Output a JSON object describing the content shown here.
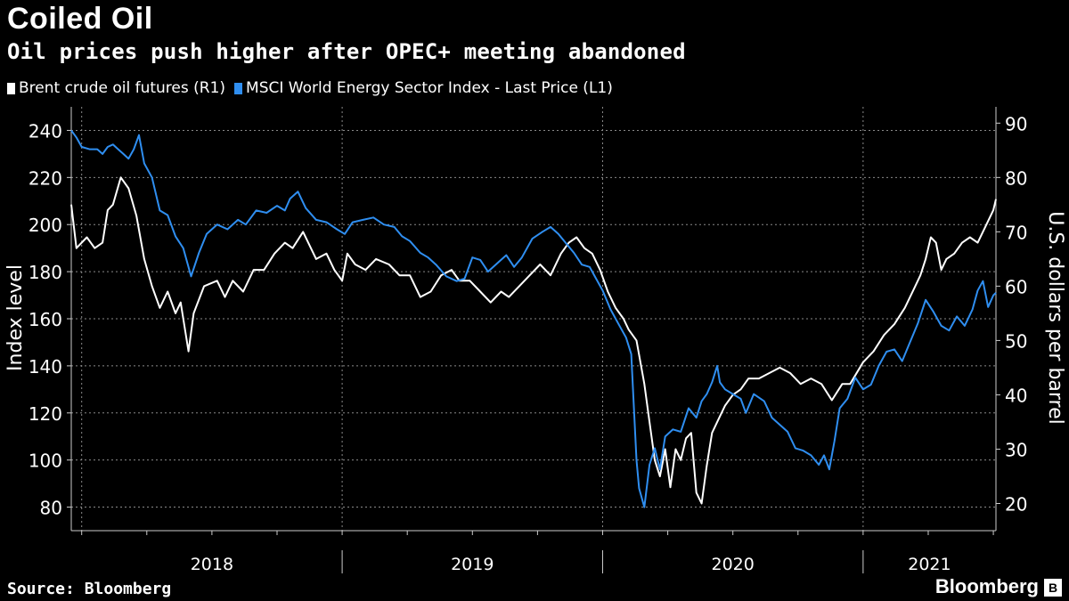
{
  "header": {
    "title": "Coiled Oil",
    "subtitle": "Oil prices push higher after OPEC+ meeting abandoned"
  },
  "footer": {
    "source": "Source: Bloomberg",
    "brand": "Bloomberg",
    "brand_icon": "bloomberg-logo-icon"
  },
  "colors": {
    "brent": "#ffffff",
    "msci": "#2f8ef0",
    "grid": "#8a8a8a",
    "background": "#000000"
  },
  "chart_data": {
    "type": "line",
    "title": "Coiled Oil",
    "subtitle": "Oil prices push higher after OPEC+ meeting abandoned",
    "ylabel_left": "Index level",
    "ylabel_right": "U.S. dollars per barrel",
    "left_axis": {
      "range": [
        70,
        250
      ],
      "ticks": [
        80,
        100,
        120,
        140,
        160,
        180,
        200,
        220,
        240
      ]
    },
    "right_axis": {
      "range": [
        15,
        93
      ],
      "ticks": [
        20,
        30,
        40,
        50,
        60,
        70,
        80,
        90
      ]
    },
    "x_range": [
      2017.96,
      2021.51
    ],
    "x_ticks": [
      2018,
      2019,
      2020,
      2021
    ],
    "x_labels": [
      "2018",
      "2019",
      "2020",
      "2021"
    ],
    "series": [
      {
        "name": "Brent crude oil futures (R1)",
        "axis": "right",
        "color": "#ffffff",
        "points": [
          [
            2017.96,
            75
          ],
          [
            2017.98,
            67
          ],
          [
            2018.02,
            69
          ],
          [
            2018.05,
            67
          ],
          [
            2018.08,
            68
          ],
          [
            2018.1,
            74
          ],
          [
            2018.12,
            75
          ],
          [
            2018.15,
            80
          ],
          [
            2018.18,
            78
          ],
          [
            2018.21,
            73
          ],
          [
            2018.24,
            65
          ],
          [
            2018.27,
            60
          ],
          [
            2018.3,
            56
          ],
          [
            2018.33,
            59
          ],
          [
            2018.36,
            55
          ],
          [
            2018.38,
            57
          ],
          [
            2018.41,
            48
          ],
          [
            2018.43,
            55
          ],
          [
            2018.47,
            60
          ],
          [
            2018.52,
            61
          ],
          [
            2018.55,
            58
          ],
          [
            2018.58,
            61
          ],
          [
            2018.62,
            59
          ],
          [
            2018.66,
            63
          ],
          [
            2018.7,
            63
          ],
          [
            2018.74,
            66
          ],
          [
            2018.78,
            68
          ],
          [
            2018.81,
            67
          ],
          [
            2018.85,
            70
          ],
          [
            2018.9,
            65
          ],
          [
            2018.94,
            66
          ],
          [
            2018.97,
            63
          ],
          [
            2019.0,
            61
          ],
          [
            2019.02,
            66
          ],
          [
            2019.05,
            64
          ],
          [
            2019.09,
            63
          ],
          [
            2019.13,
            65
          ],
          [
            2019.18,
            64
          ],
          [
            2019.22,
            62
          ],
          [
            2019.26,
            62
          ],
          [
            2019.3,
            58
          ],
          [
            2019.34,
            59
          ],
          [
            2019.38,
            62
          ],
          [
            2019.42,
            63
          ],
          [
            2019.45,
            61
          ],
          [
            2019.49,
            61
          ],
          [
            2019.53,
            59
          ],
          [
            2019.57,
            57
          ],
          [
            2019.61,
            59
          ],
          [
            2019.64,
            58
          ],
          [
            2019.68,
            60
          ],
          [
            2019.72,
            62
          ],
          [
            2019.76,
            64
          ],
          [
            2019.8,
            62
          ],
          [
            2019.84,
            66
          ],
          [
            2019.87,
            68
          ],
          [
            2019.9,
            69
          ],
          [
            2019.93,
            67
          ],
          [
            2019.96,
            66
          ],
          [
            2019.99,
            63
          ],
          [
            2020.02,
            59
          ],
          [
            2020.05,
            56
          ],
          [
            2020.08,
            54
          ],
          [
            2020.1,
            52
          ],
          [
            2020.13,
            50
          ],
          [
            2020.16,
            42
          ],
          [
            2020.18,
            35
          ],
          [
            2020.2,
            28
          ],
          [
            2020.22,
            25
          ],
          [
            2020.24,
            30
          ],
          [
            2020.26,
            23
          ],
          [
            2020.28,
            30
          ],
          [
            2020.3,
            28
          ],
          [
            2020.32,
            32
          ],
          [
            2020.34,
            33
          ],
          [
            2020.36,
            22
          ],
          [
            2020.38,
            20
          ],
          [
            2020.4,
            27
          ],
          [
            2020.42,
            33
          ],
          [
            2020.44,
            35
          ],
          [
            2020.47,
            38
          ],
          [
            2020.5,
            40
          ],
          [
            2020.53,
            41
          ],
          [
            2020.56,
            43
          ],
          [
            2020.6,
            43
          ],
          [
            2020.64,
            44
          ],
          [
            2020.68,
            45
          ],
          [
            2020.72,
            44
          ],
          [
            2020.76,
            42
          ],
          [
            2020.8,
            43
          ],
          [
            2020.84,
            42
          ],
          [
            2020.88,
            39
          ],
          [
            2020.92,
            42
          ],
          [
            2020.95,
            42
          ],
          [
            2021.0,
            46
          ],
          [
            2021.04,
            48
          ],
          [
            2021.08,
            51
          ],
          [
            2021.12,
            53
          ],
          [
            2021.16,
            56
          ],
          [
            2021.2,
            60
          ],
          [
            2021.22,
            62
          ],
          [
            2021.24,
            65
          ],
          [
            2021.26,
            69
          ],
          [
            2021.28,
            68
          ],
          [
            2021.3,
            63
          ],
          [
            2021.32,
            65
          ],
          [
            2021.35,
            66
          ],
          [
            2021.38,
            68
          ],
          [
            2021.41,
            69
          ],
          [
            2021.44,
            68
          ],
          [
            2021.47,
            71
          ],
          [
            2021.5,
            74
          ],
          [
            2021.51,
            76
          ]
        ]
      },
      {
        "name": "MSCI World Energy Sector Index - Last Price (L1)",
        "axis": "left",
        "color": "#2f8ef0",
        "points": [
          [
            2017.96,
            240
          ],
          [
            2017.98,
            237
          ],
          [
            2018.0,
            233
          ],
          [
            2018.03,
            232
          ],
          [
            2018.06,
            232
          ],
          [
            2018.08,
            230
          ],
          [
            2018.1,
            233
          ],
          [
            2018.12,
            234
          ],
          [
            2018.14,
            232
          ],
          [
            2018.16,
            230
          ],
          [
            2018.18,
            228
          ],
          [
            2018.2,
            232
          ],
          [
            2018.22,
            238
          ],
          [
            2018.24,
            226
          ],
          [
            2018.27,
            220
          ],
          [
            2018.3,
            206
          ],
          [
            2018.33,
            204
          ],
          [
            2018.36,
            195
          ],
          [
            2018.39,
            190
          ],
          [
            2018.42,
            178
          ],
          [
            2018.45,
            188
          ],
          [
            2018.48,
            196
          ],
          [
            2018.52,
            200
          ],
          [
            2018.56,
            198
          ],
          [
            2018.6,
            202
          ],
          [
            2018.63,
            200
          ],
          [
            2018.67,
            206
          ],
          [
            2018.71,
            205
          ],
          [
            2018.75,
            208
          ],
          [
            2018.78,
            206
          ],
          [
            2018.8,
            211
          ],
          [
            2018.83,
            214
          ],
          [
            2018.86,
            207
          ],
          [
            2018.9,
            202
          ],
          [
            2018.94,
            201
          ],
          [
            2018.98,
            198
          ],
          [
            2019.01,
            196
          ],
          [
            2019.04,
            201
          ],
          [
            2019.08,
            202
          ],
          [
            2019.12,
            203
          ],
          [
            2019.16,
            200
          ],
          [
            2019.2,
            199
          ],
          [
            2019.23,
            195
          ],
          [
            2019.26,
            193
          ],
          [
            2019.3,
            188
          ],
          [
            2019.33,
            186
          ],
          [
            2019.36,
            183
          ],
          [
            2019.4,
            178
          ],
          [
            2019.44,
            176
          ],
          [
            2019.47,
            177
          ],
          [
            2019.5,
            186
          ],
          [
            2019.53,
            185
          ],
          [
            2019.56,
            180
          ],
          [
            2019.6,
            184
          ],
          [
            2019.63,
            187
          ],
          [
            2019.66,
            182
          ],
          [
            2019.69,
            186
          ],
          [
            2019.73,
            194
          ],
          [
            2019.77,
            197
          ],
          [
            2019.8,
            199
          ],
          [
            2019.83,
            196
          ],
          [
            2019.86,
            192
          ],
          [
            2019.89,
            188
          ],
          [
            2019.92,
            183
          ],
          [
            2019.95,
            182
          ],
          [
            2019.97,
            178
          ],
          [
            2020.0,
            172
          ],
          [
            2020.03,
            164
          ],
          [
            2020.06,
            158
          ],
          [
            2020.09,
            152
          ],
          [
            2020.11,
            145
          ],
          [
            2020.13,
            100
          ],
          [
            2020.14,
            88
          ],
          [
            2020.16,
            80
          ],
          [
            2020.18,
            98
          ],
          [
            2020.2,
            105
          ],
          [
            2020.22,
            96
          ],
          [
            2020.24,
            110
          ],
          [
            2020.27,
            113
          ],
          [
            2020.3,
            112
          ],
          [
            2020.33,
            122
          ],
          [
            2020.36,
            118
          ],
          [
            2020.38,
            125
          ],
          [
            2020.4,
            128
          ],
          [
            2020.42,
            133
          ],
          [
            2020.44,
            140
          ],
          [
            2020.45,
            133
          ],
          [
            2020.47,
            130
          ],
          [
            2020.5,
            128
          ],
          [
            2020.53,
            126
          ],
          [
            2020.55,
            120
          ],
          [
            2020.58,
            128
          ],
          [
            2020.62,
            125
          ],
          [
            2020.65,
            118
          ],
          [
            2020.68,
            115
          ],
          [
            2020.71,
            112
          ],
          [
            2020.74,
            105
          ],
          [
            2020.77,
            104
          ],
          [
            2020.8,
            102
          ],
          [
            2020.83,
            98
          ],
          [
            2020.85,
            102
          ],
          [
            2020.87,
            96
          ],
          [
            2020.89,
            108
          ],
          [
            2020.91,
            122
          ],
          [
            2020.94,
            126
          ],
          [
            2020.97,
            135
          ],
          [
            2021.0,
            130
          ],
          [
            2021.03,
            132
          ],
          [
            2021.06,
            140
          ],
          [
            2021.09,
            146
          ],
          [
            2021.12,
            147
          ],
          [
            2021.15,
            142
          ],
          [
            2021.18,
            150
          ],
          [
            2021.21,
            158
          ],
          [
            2021.24,
            168
          ],
          [
            2021.27,
            163
          ],
          [
            2021.3,
            157
          ],
          [
            2021.33,
            155
          ],
          [
            2021.36,
            161
          ],
          [
            2021.39,
            157
          ],
          [
            2021.42,
            164
          ],
          [
            2021.44,
            172
          ],
          [
            2021.46,
            176
          ],
          [
            2021.48,
            165
          ],
          [
            2021.5,
            170
          ],
          [
            2021.51,
            171
          ]
        ]
      }
    ]
  }
}
